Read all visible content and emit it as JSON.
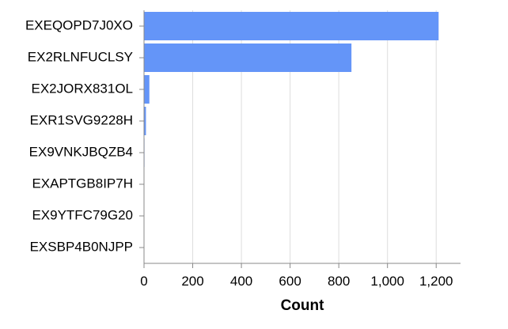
{
  "chart_data": {
    "type": "bar",
    "orientation": "horizontal",
    "categories": [
      "EXEQOPD7J0XO",
      "EX2RLNFUCLSY",
      "EX2JORX831OL",
      "EXR1SVG9228H",
      "EX9VNKJBQZB4",
      "EXAPTGB8IP7H",
      "EX9YTFC79G20",
      "EXSBP4B0NJPP"
    ],
    "values": [
      1210,
      852,
      22,
      8,
      2,
      1,
      1,
      1
    ],
    "xlabel": "Count",
    "ylabel": "",
    "xlim": [
      0,
      1300
    ],
    "x_ticks": [
      0,
      200,
      400,
      600,
      800,
      1000,
      1200
    ],
    "x_tick_labels": [
      "0",
      "200",
      "400",
      "600",
      "800",
      "1,000",
      "1,200"
    ],
    "bar_color": "#6495f8",
    "grid": true
  }
}
